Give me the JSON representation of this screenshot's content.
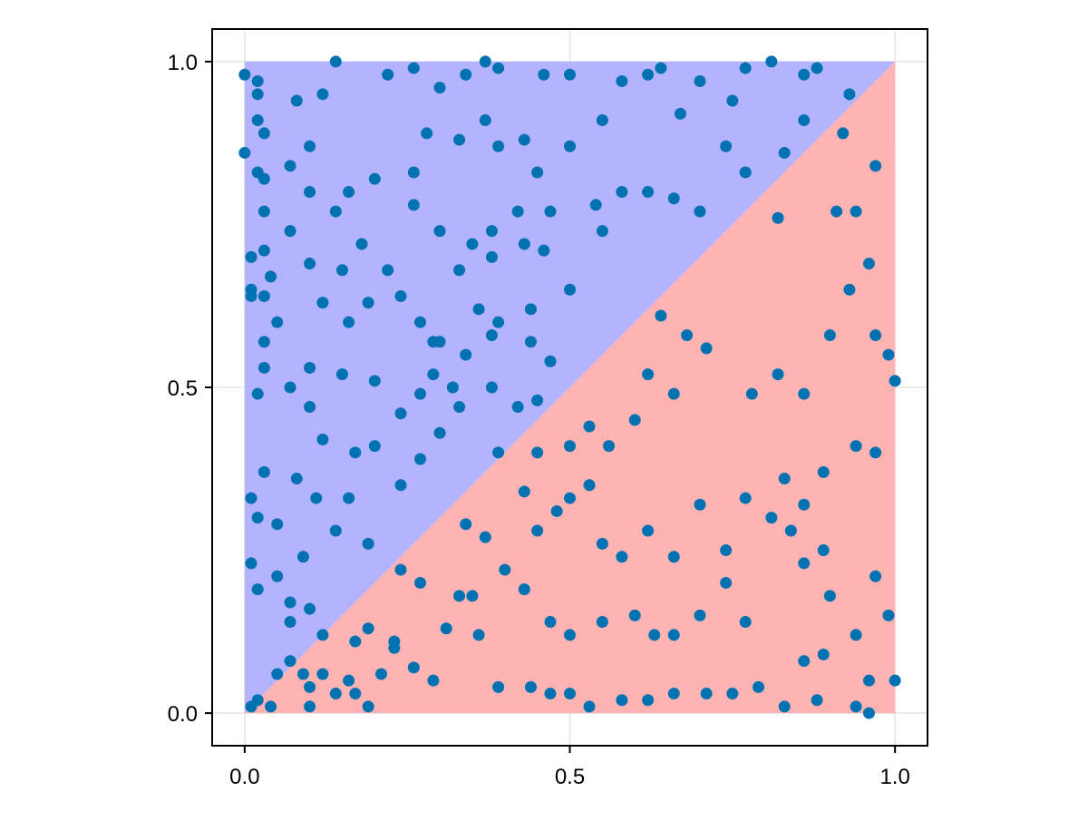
{
  "chart_data": {
    "type": "scatter",
    "title": "",
    "xlabel": "",
    "ylabel": "",
    "xlim": [
      -0.05,
      1.05
    ],
    "ylim": [
      -0.05,
      1.05
    ],
    "grid": true,
    "x_ticks": [
      "0.0",
      "0.5",
      "1.0"
    ],
    "y_ticks": [
      "0.0",
      "0.5",
      "1.0"
    ],
    "x_tick_values": [
      0,
      0.5,
      1
    ],
    "y_tick_values": [
      0,
      0.5,
      1
    ],
    "colors": {
      "points": "#0072B2",
      "upper_region": "#B3B3FF",
      "lower_region": "#FFB3B3",
      "grid": "#E5E5E5"
    },
    "regions": [
      {
        "fill": "upper_region",
        "polygon": [
          [
            0,
            0
          ],
          [
            1,
            1
          ],
          [
            0,
            1
          ]
        ]
      },
      {
        "fill": "lower_region",
        "polygon": [
          [
            0,
            0
          ],
          [
            1,
            0
          ],
          [
            1,
            1
          ]
        ]
      }
    ],
    "points": [
      [
        0.0,
        0.86
      ],
      [
        0.0,
        0.98
      ],
      [
        0.02,
        0.97
      ],
      [
        0.02,
        0.95
      ],
      [
        0.02,
        0.91
      ],
      [
        0.03,
        0.89
      ],
      [
        0.02,
        0.83
      ],
      [
        0.03,
        0.82
      ],
      [
        0.03,
        0.77
      ],
      [
        0.01,
        0.7
      ],
      [
        0.03,
        0.71
      ],
      [
        0.01,
        0.65
      ],
      [
        0.01,
        0.64
      ],
      [
        0.03,
        0.64
      ],
      [
        0.04,
        0.67
      ],
      [
        0.03,
        0.57
      ],
      [
        0.03,
        0.53
      ],
      [
        0.02,
        0.49
      ],
      [
        0.01,
        0.33
      ],
      [
        0.02,
        0.3
      ],
      [
        0.03,
        0.37
      ],
      [
        0.01,
        0.23
      ],
      [
        0.02,
        0.19
      ],
      [
        0.02,
        0.02
      ],
      [
        0.04,
        0.01
      ],
      [
        0.01,
        0.01
      ],
      [
        0.05,
        0.06
      ],
      [
        0.07,
        0.08
      ],
      [
        0.09,
        0.06
      ],
      [
        0.1,
        0.04
      ],
      [
        0.1,
        0.01
      ],
      [
        0.14,
        0.03
      ],
      [
        0.17,
        0.03
      ],
      [
        0.19,
        0.01
      ],
      [
        0.21,
        0.06
      ],
      [
        0.23,
        0.1
      ],
      [
        0.26,
        0.07
      ],
      [
        0.29,
        0.05
      ],
      [
        0.31,
        0.13
      ],
      [
        0.33,
        0.18
      ],
      [
        0.36,
        0.12
      ],
      [
        0.39,
        0.04
      ],
      [
        0.44,
        0.04
      ],
      [
        0.47,
        0.03
      ],
      [
        0.5,
        0.03
      ],
      [
        0.53,
        0.01
      ],
      [
        0.58,
        0.02
      ],
      [
        0.62,
        0.02
      ],
      [
        0.66,
        0.03
      ],
      [
        0.71,
        0.03
      ],
      [
        0.75,
        0.03
      ],
      [
        0.79,
        0.04
      ],
      [
        0.83,
        0.01
      ],
      [
        0.88,
        0.02
      ],
      [
        0.94,
        0.01
      ],
      [
        0.96,
        0.0
      ],
      [
        1.0,
        0.05
      ],
      [
        0.96,
        0.05
      ],
      [
        0.99,
        0.15
      ],
      [
        0.97,
        0.21
      ],
      [
        0.94,
        0.12
      ],
      [
        0.89,
        0.09
      ],
      [
        0.86,
        0.08
      ],
      [
        0.9,
        0.18
      ],
      [
        0.86,
        0.23
      ],
      [
        0.89,
        0.25
      ],
      [
        0.84,
        0.28
      ],
      [
        0.86,
        0.32
      ],
      [
        0.83,
        0.36
      ],
      [
        0.89,
        0.37
      ],
      [
        0.94,
        0.41
      ],
      [
        0.97,
        0.4
      ],
      [
        1.0,
        0.51
      ],
      [
        0.99,
        0.55
      ],
      [
        0.97,
        0.58
      ],
      [
        0.96,
        0.69
      ],
      [
        0.94,
        0.77
      ],
      [
        0.92,
        0.89
      ],
      [
        0.97,
        0.84
      ],
      [
        0.93,
        0.95
      ],
      [
        0.88,
        0.99
      ],
      [
        0.86,
        0.98
      ],
      [
        0.81,
        1.0
      ],
      [
        0.77,
        0.99
      ],
      [
        0.75,
        0.94
      ],
      [
        0.7,
        0.97
      ],
      [
        0.67,
        0.92
      ],
      [
        0.64,
        0.99
      ],
      [
        0.62,
        0.98
      ],
      [
        0.58,
        0.97
      ],
      [
        0.55,
        0.91
      ],
      [
        0.5,
        0.98
      ],
      [
        0.46,
        0.98
      ],
      [
        0.39,
        0.99
      ],
      [
        0.37,
        1.0
      ],
      [
        0.34,
        0.98
      ],
      [
        0.3,
        0.96
      ],
      [
        0.26,
        0.99
      ],
      [
        0.22,
        0.98
      ],
      [
        0.14,
        1.0
      ],
      [
        0.12,
        0.95
      ],
      [
        0.08,
        0.94
      ],
      [
        0.1,
        0.87
      ],
      [
        0.07,
        0.84
      ],
      [
        0.14,
        0.77
      ],
      [
        0.18,
        0.72
      ],
      [
        0.22,
        0.68
      ],
      [
        0.24,
        0.64
      ],
      [
        0.27,
        0.6
      ],
      [
        0.3,
        0.57
      ],
      [
        0.34,
        0.55
      ],
      [
        0.38,
        0.5
      ],
      [
        0.42,
        0.47
      ],
      [
        0.45,
        0.48
      ],
      [
        0.47,
        0.54
      ],
      [
        0.5,
        0.65
      ],
      [
        0.5,
        0.87
      ],
      [
        0.54,
        0.78
      ],
      [
        0.55,
        0.74
      ],
      [
        0.58,
        0.8
      ],
      [
        0.62,
        0.8
      ],
      [
        0.66,
        0.79
      ],
      [
        0.7,
        0.77
      ],
      [
        0.74,
        0.87
      ],
      [
        0.77,
        0.83
      ],
      [
        0.82,
        0.76
      ],
      [
        0.83,
        0.86
      ],
      [
        0.86,
        0.91
      ],
      [
        0.91,
        0.77
      ],
      [
        0.93,
        0.65
      ],
      [
        0.9,
        0.58
      ],
      [
        0.86,
        0.49
      ],
      [
        0.82,
        0.52
      ],
      [
        0.78,
        0.49
      ],
      [
        0.71,
        0.56
      ],
      [
        0.68,
        0.58
      ],
      [
        0.64,
        0.61
      ],
      [
        0.62,
        0.52
      ],
      [
        0.66,
        0.49
      ],
      [
        0.6,
        0.45
      ],
      [
        0.56,
        0.41
      ],
      [
        0.53,
        0.44
      ],
      [
        0.5,
        0.41
      ],
      [
        0.48,
        0.31
      ],
      [
        0.5,
        0.33
      ],
      [
        0.53,
        0.35
      ],
      [
        0.55,
        0.26
      ],
      [
        0.58,
        0.24
      ],
      [
        0.62,
        0.28
      ],
      [
        0.66,
        0.24
      ],
      [
        0.7,
        0.32
      ],
      [
        0.74,
        0.25
      ],
      [
        0.77,
        0.33
      ],
      [
        0.81,
        0.3
      ],
      [
        0.77,
        0.14
      ],
      [
        0.74,
        0.2
      ],
      [
        0.7,
        0.15
      ],
      [
        0.66,
        0.12
      ],
      [
        0.63,
        0.12
      ],
      [
        0.6,
        0.15
      ],
      [
        0.55,
        0.14
      ],
      [
        0.5,
        0.12
      ],
      [
        0.47,
        0.14
      ],
      [
        0.43,
        0.19
      ],
      [
        0.4,
        0.22
      ],
      [
        0.37,
        0.27
      ],
      [
        0.34,
        0.29
      ],
      [
        0.43,
        0.34
      ],
      [
        0.45,
        0.28
      ],
      [
        0.35,
        0.18
      ],
      [
        0.27,
        0.2
      ],
      [
        0.24,
        0.22
      ],
      [
        0.23,
        0.11
      ],
      [
        0.19,
        0.13
      ],
      [
        0.17,
        0.11
      ],
      [
        0.16,
        0.05
      ],
      [
        0.12,
        0.06
      ],
      [
        0.1,
        0.16
      ],
      [
        0.12,
        0.12
      ],
      [
        0.07,
        0.17
      ],
      [
        0.05,
        0.21
      ],
      [
        0.07,
        0.14
      ],
      [
        0.09,
        0.24
      ],
      [
        0.14,
        0.28
      ],
      [
        0.16,
        0.33
      ],
      [
        0.19,
        0.26
      ],
      [
        0.11,
        0.33
      ],
      [
        0.08,
        0.36
      ],
      [
        0.05,
        0.29
      ],
      [
        0.12,
        0.42
      ],
      [
        0.17,
        0.4
      ],
      [
        0.2,
        0.41
      ],
      [
        0.24,
        0.35
      ],
      [
        0.27,
        0.39
      ],
      [
        0.3,
        0.43
      ],
      [
        0.33,
        0.47
      ],
      [
        0.24,
        0.46
      ],
      [
        0.2,
        0.51
      ],
      [
        0.15,
        0.52
      ],
      [
        0.1,
        0.53
      ],
      [
        0.07,
        0.5
      ],
      [
        0.1,
        0.47
      ],
      [
        0.05,
        0.6
      ],
      [
        0.12,
        0.63
      ],
      [
        0.16,
        0.6
      ],
      [
        0.19,
        0.63
      ],
      [
        0.15,
        0.68
      ],
      [
        0.1,
        0.69
      ],
      [
        0.07,
        0.74
      ],
      [
        0.1,
        0.8
      ],
      [
        0.16,
        0.8
      ],
      [
        0.2,
        0.82
      ],
      [
        0.26,
        0.83
      ],
      [
        0.28,
        0.89
      ],
      [
        0.33,
        0.88
      ],
      [
        0.37,
        0.91
      ],
      [
        0.39,
        0.87
      ],
      [
        0.43,
        0.88
      ],
      [
        0.45,
        0.83
      ],
      [
        0.42,
        0.77
      ],
      [
        0.38,
        0.74
      ],
      [
        0.35,
        0.72
      ],
      [
        0.3,
        0.74
      ],
      [
        0.26,
        0.78
      ],
      [
        0.38,
        0.7
      ],
      [
        0.33,
        0.68
      ],
      [
        0.36,
        0.62
      ],
      [
        0.39,
        0.6
      ],
      [
        0.44,
        0.62
      ],
      [
        0.46,
        0.71
      ],
      [
        0.43,
        0.72
      ],
      [
        0.47,
        0.77
      ],
      [
        0.44,
        0.57
      ],
      [
        0.38,
        0.58
      ],
      [
        0.29,
        0.52
      ],
      [
        0.27,
        0.49
      ],
      [
        0.32,
        0.5
      ],
      [
        0.29,
        0.57
      ],
      [
        0.45,
        0.4
      ],
      [
        0.39,
        0.4
      ]
    ]
  }
}
